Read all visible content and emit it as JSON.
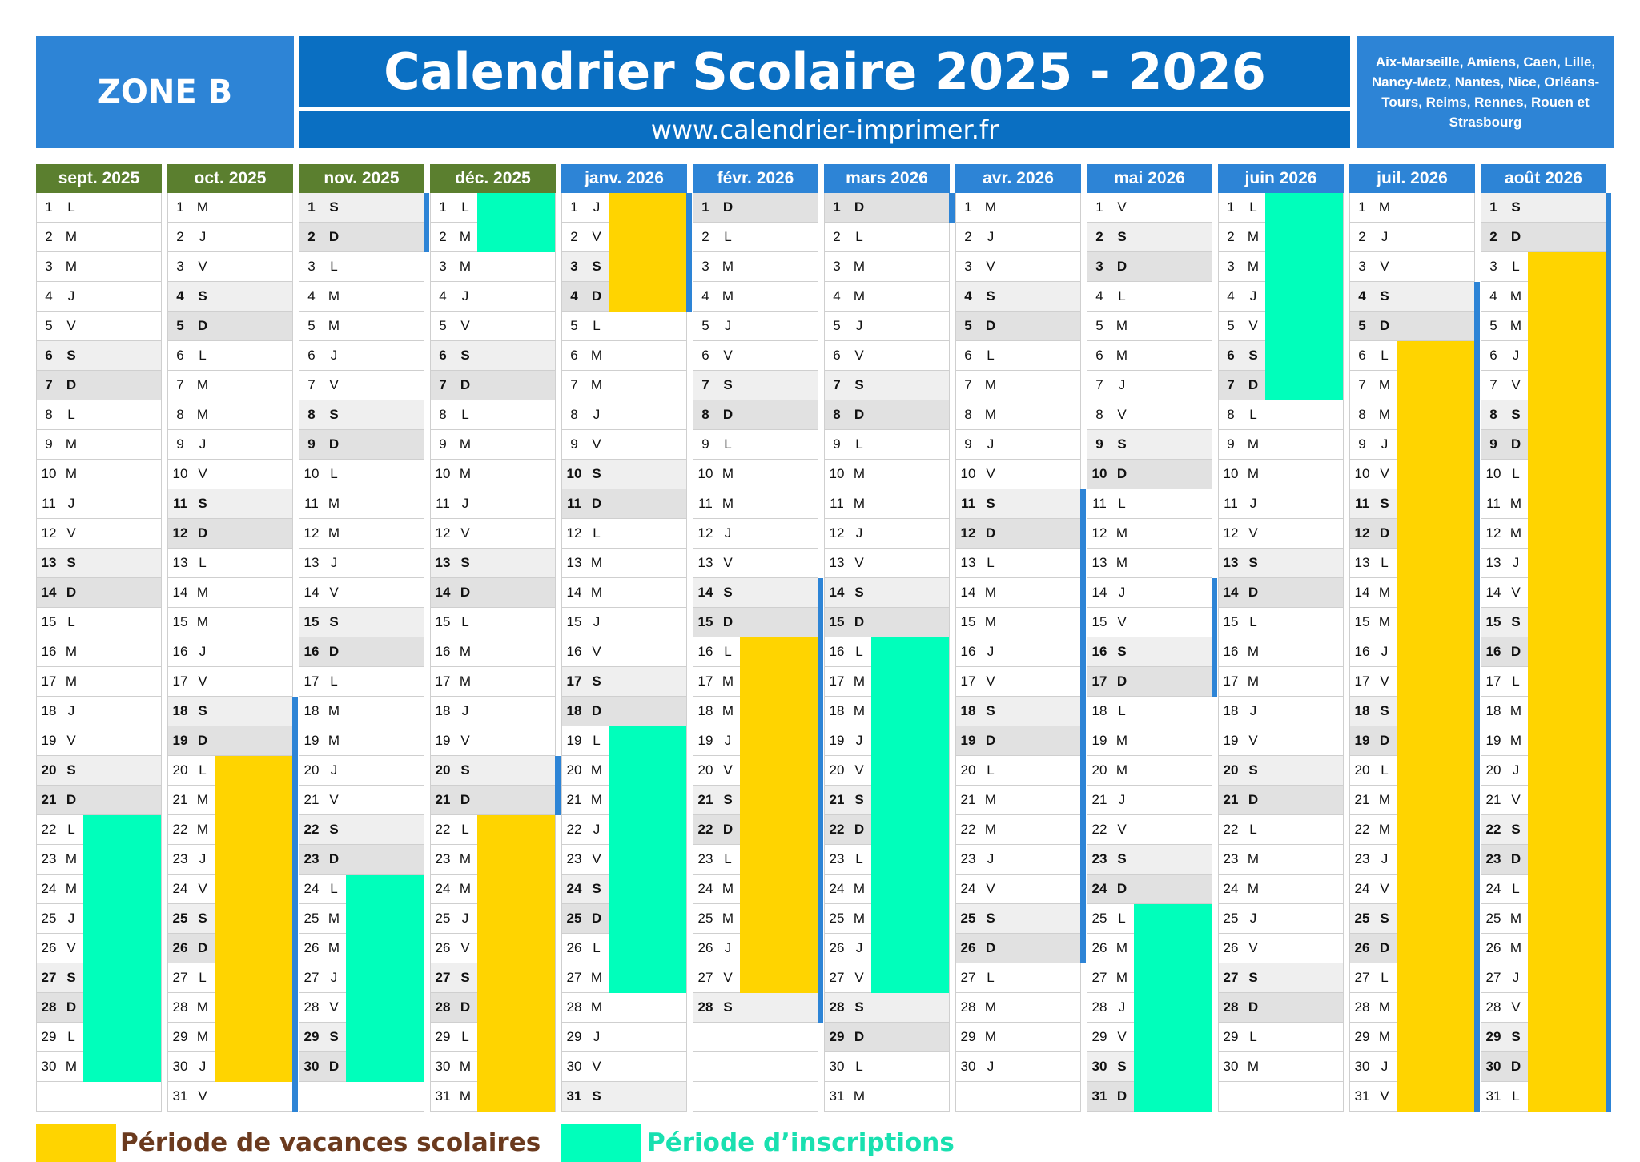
{
  "header": {
    "zone": "ZONE B",
    "title": "Calendrier Scolaire 2025 - 2026",
    "url": "www.calendrier-imprimer.fr",
    "cities": "Aix-Marseille, Amiens, Caen, Lille,\nNancy-Metz, Nantes, Nice, Orléans-\nTours, Reims, Rennes, Rouen et\nStrasbourg"
  },
  "colors": {
    "header_blue": "#0a6fc2",
    "zone_blue": "#2d84d6",
    "month_green": "#5b7f2f",
    "month_blue": "#2d84d6",
    "vacation_yellow": "#ffd400",
    "registration_green": "#00ffbb",
    "legend_vacation_text": "#6b3a1e",
    "legend_registration_text": "#19e0b0"
  },
  "months": [
    {
      "name": "sept. 2025",
      "start": 1,
      "days": 30,
      "header": "green",
      "vacation": [],
      "registration": [
        [
          22,
          30
        ]
      ],
      "edge": []
    },
    {
      "name": "oct. 2025",
      "start": 3,
      "days": 31,
      "header": "green",
      "vacation": [
        [
          20,
          30
        ]
      ],
      "registration": [],
      "edge": [
        [
          18,
          31
        ]
      ]
    },
    {
      "name": "nov. 2025",
      "start": 6,
      "days": 30,
      "header": "green",
      "vacation": [],
      "registration": [
        [
          24,
          30
        ]
      ],
      "edge": [
        [
          1,
          2
        ]
      ]
    },
    {
      "name": "déc. 2025",
      "start": 1,
      "days": 31,
      "header": "green",
      "vacation": [
        [
          22,
          31
        ]
      ],
      "registration": [
        [
          1,
          2
        ]
      ],
      "edge": [
        [
          20,
          21
        ]
      ]
    },
    {
      "name": "janv. 2026",
      "start": 4,
      "days": 31,
      "header": "blue",
      "vacation": [
        [
          1,
          4
        ]
      ],
      "registration": [
        [
          19,
          27
        ]
      ],
      "edge": [
        [
          1,
          4
        ]
      ]
    },
    {
      "name": "févr. 2026",
      "start": 0,
      "days": 28,
      "header": "blue",
      "vacation": [
        [
          16,
          27
        ]
      ],
      "registration": [],
      "edge": [
        [
          14,
          28
        ]
      ]
    },
    {
      "name": "mars 2026",
      "start": 0,
      "days": 31,
      "header": "blue",
      "vacation": [],
      "registration": [
        [
          16,
          27
        ]
      ],
      "edge": [
        [
          1,
          1
        ]
      ]
    },
    {
      "name": "avr. 2026",
      "start": 3,
      "days": 30,
      "header": "blue",
      "vacation": [],
      "registration": [],
      "edge": [
        [
          11,
          26
        ]
      ]
    },
    {
      "name": "mai 2026",
      "start": 5,
      "days": 31,
      "header": "blue",
      "vacation": [],
      "registration": [
        [
          25,
          31
        ]
      ],
      "edge": [
        [
          14,
          17
        ]
      ]
    },
    {
      "name": "juin 2026",
      "start": 1,
      "days": 30,
      "header": "blue",
      "vacation": [],
      "registration": [
        [
          1,
          7
        ]
      ],
      "edge": []
    },
    {
      "name": "juil. 2026",
      "start": 3,
      "days": 31,
      "header": "blue",
      "vacation": [
        [
          6,
          31
        ]
      ],
      "registration": [],
      "edge": [
        [
          4,
          31
        ]
      ]
    },
    {
      "name": "août 2026",
      "start": 6,
      "days": 31,
      "header": "blue",
      "vacation": [
        [
          3,
          31
        ]
      ],
      "registration": [],
      "edge": [
        [
          1,
          31
        ]
      ]
    }
  ],
  "weekday_letters": [
    "D",
    "L",
    "M",
    "M",
    "J",
    "V",
    "S"
  ],
  "legend": {
    "vacation": "Période de vacances scolaires",
    "registration": "Période d’inscriptions"
  }
}
